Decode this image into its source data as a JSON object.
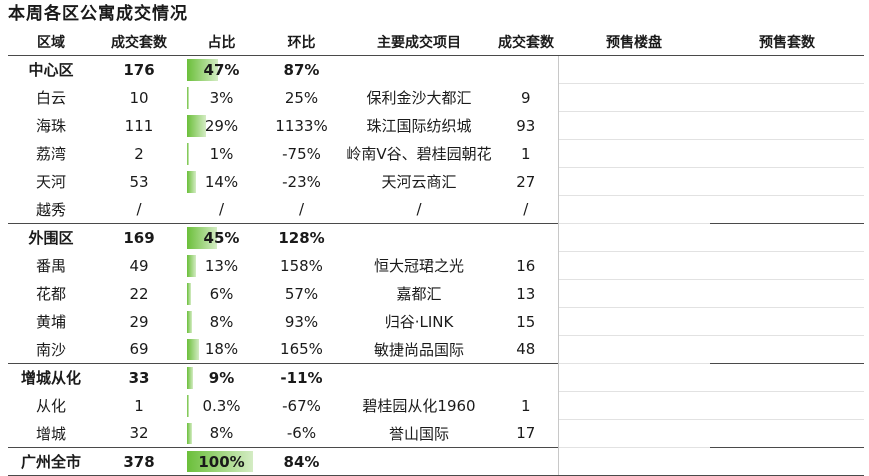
{
  "title": "本周各区公寓成交情况",
  "headers": {
    "region": "区域",
    "deals": "成交套数",
    "share": "占比",
    "ring": "环比",
    "project": "主要成交项目",
    "project_deals": "成交套数",
    "presale": "预售楼盘",
    "presale_units": "预售套数"
  },
  "rows": [
    {
      "region": "中心区",
      "deals": "176",
      "share": "47%",
      "share_value": 47,
      "ring": "87%",
      "project": "",
      "project_deals": "",
      "group": true
    },
    {
      "region": "白云",
      "deals": "10",
      "share": "3%",
      "share_value": 3,
      "ring": "25%",
      "project": "保利金沙大都汇",
      "project_deals": "9",
      "group": false
    },
    {
      "region": "海珠",
      "deals": "111",
      "share": "29%",
      "share_value": 29,
      "ring": "1133%",
      "project": "珠江国际纺织城",
      "project_deals": "93",
      "group": false
    },
    {
      "region": "荔湾",
      "deals": "2",
      "share": "1%",
      "share_value": 1,
      "ring": "-75%",
      "project": "岭南V谷、碧桂园朝花",
      "project_deals": "1",
      "group": false
    },
    {
      "region": "天河",
      "deals": "53",
      "share": "14%",
      "share_value": 14,
      "ring": "-23%",
      "project": "天河云商汇",
      "project_deals": "27",
      "group": false
    },
    {
      "region": "越秀",
      "deals": "/",
      "share": "/",
      "share_value": 0,
      "ring": "/",
      "project": "/",
      "project_deals": "/",
      "group": false
    },
    {
      "region": "外围区",
      "deals": "169",
      "share": "45%",
      "share_value": 45,
      "ring": "128%",
      "project": "",
      "project_deals": "",
      "group": true
    },
    {
      "region": "番禺",
      "deals": "49",
      "share": "13%",
      "share_value": 13,
      "ring": "158%",
      "project": "恒大冠珺之光",
      "project_deals": "16",
      "group": false
    },
    {
      "region": "花都",
      "deals": "22",
      "share": "6%",
      "share_value": 6,
      "ring": "57%",
      "project": "嘉都汇",
      "project_deals": "13",
      "group": false
    },
    {
      "region": "黄埔",
      "deals": "29",
      "share": "8%",
      "share_value": 8,
      "ring": "93%",
      "project": "归谷·LINK",
      "project_deals": "15",
      "group": false
    },
    {
      "region": "南沙",
      "deals": "69",
      "share": "18%",
      "share_value": 18,
      "ring": "165%",
      "project": "敏捷尚品国际",
      "project_deals": "48",
      "group": false
    },
    {
      "region": "增城从化",
      "deals": "33",
      "share": "9%",
      "share_value": 9,
      "ring": "-11%",
      "project": "",
      "project_deals": "",
      "group": true
    },
    {
      "region": "从化",
      "deals": "1",
      "share": "0.3%",
      "share_value": 0.3,
      "ring": "-67%",
      "project": "碧桂园从化1960",
      "project_deals": "1",
      "group": false
    },
    {
      "region": "增城",
      "deals": "32",
      "share": "8%",
      "share_value": 8,
      "ring": "-6%",
      "project": "誉山国际",
      "project_deals": "17",
      "group": false
    },
    {
      "region": "广州全市",
      "deals": "378",
      "share": "100%",
      "share_value": 100,
      "ring": "84%",
      "project": "",
      "project_deals": "",
      "group": true,
      "total": true
    }
  ],
  "bar_color": "#6bbf3a"
}
